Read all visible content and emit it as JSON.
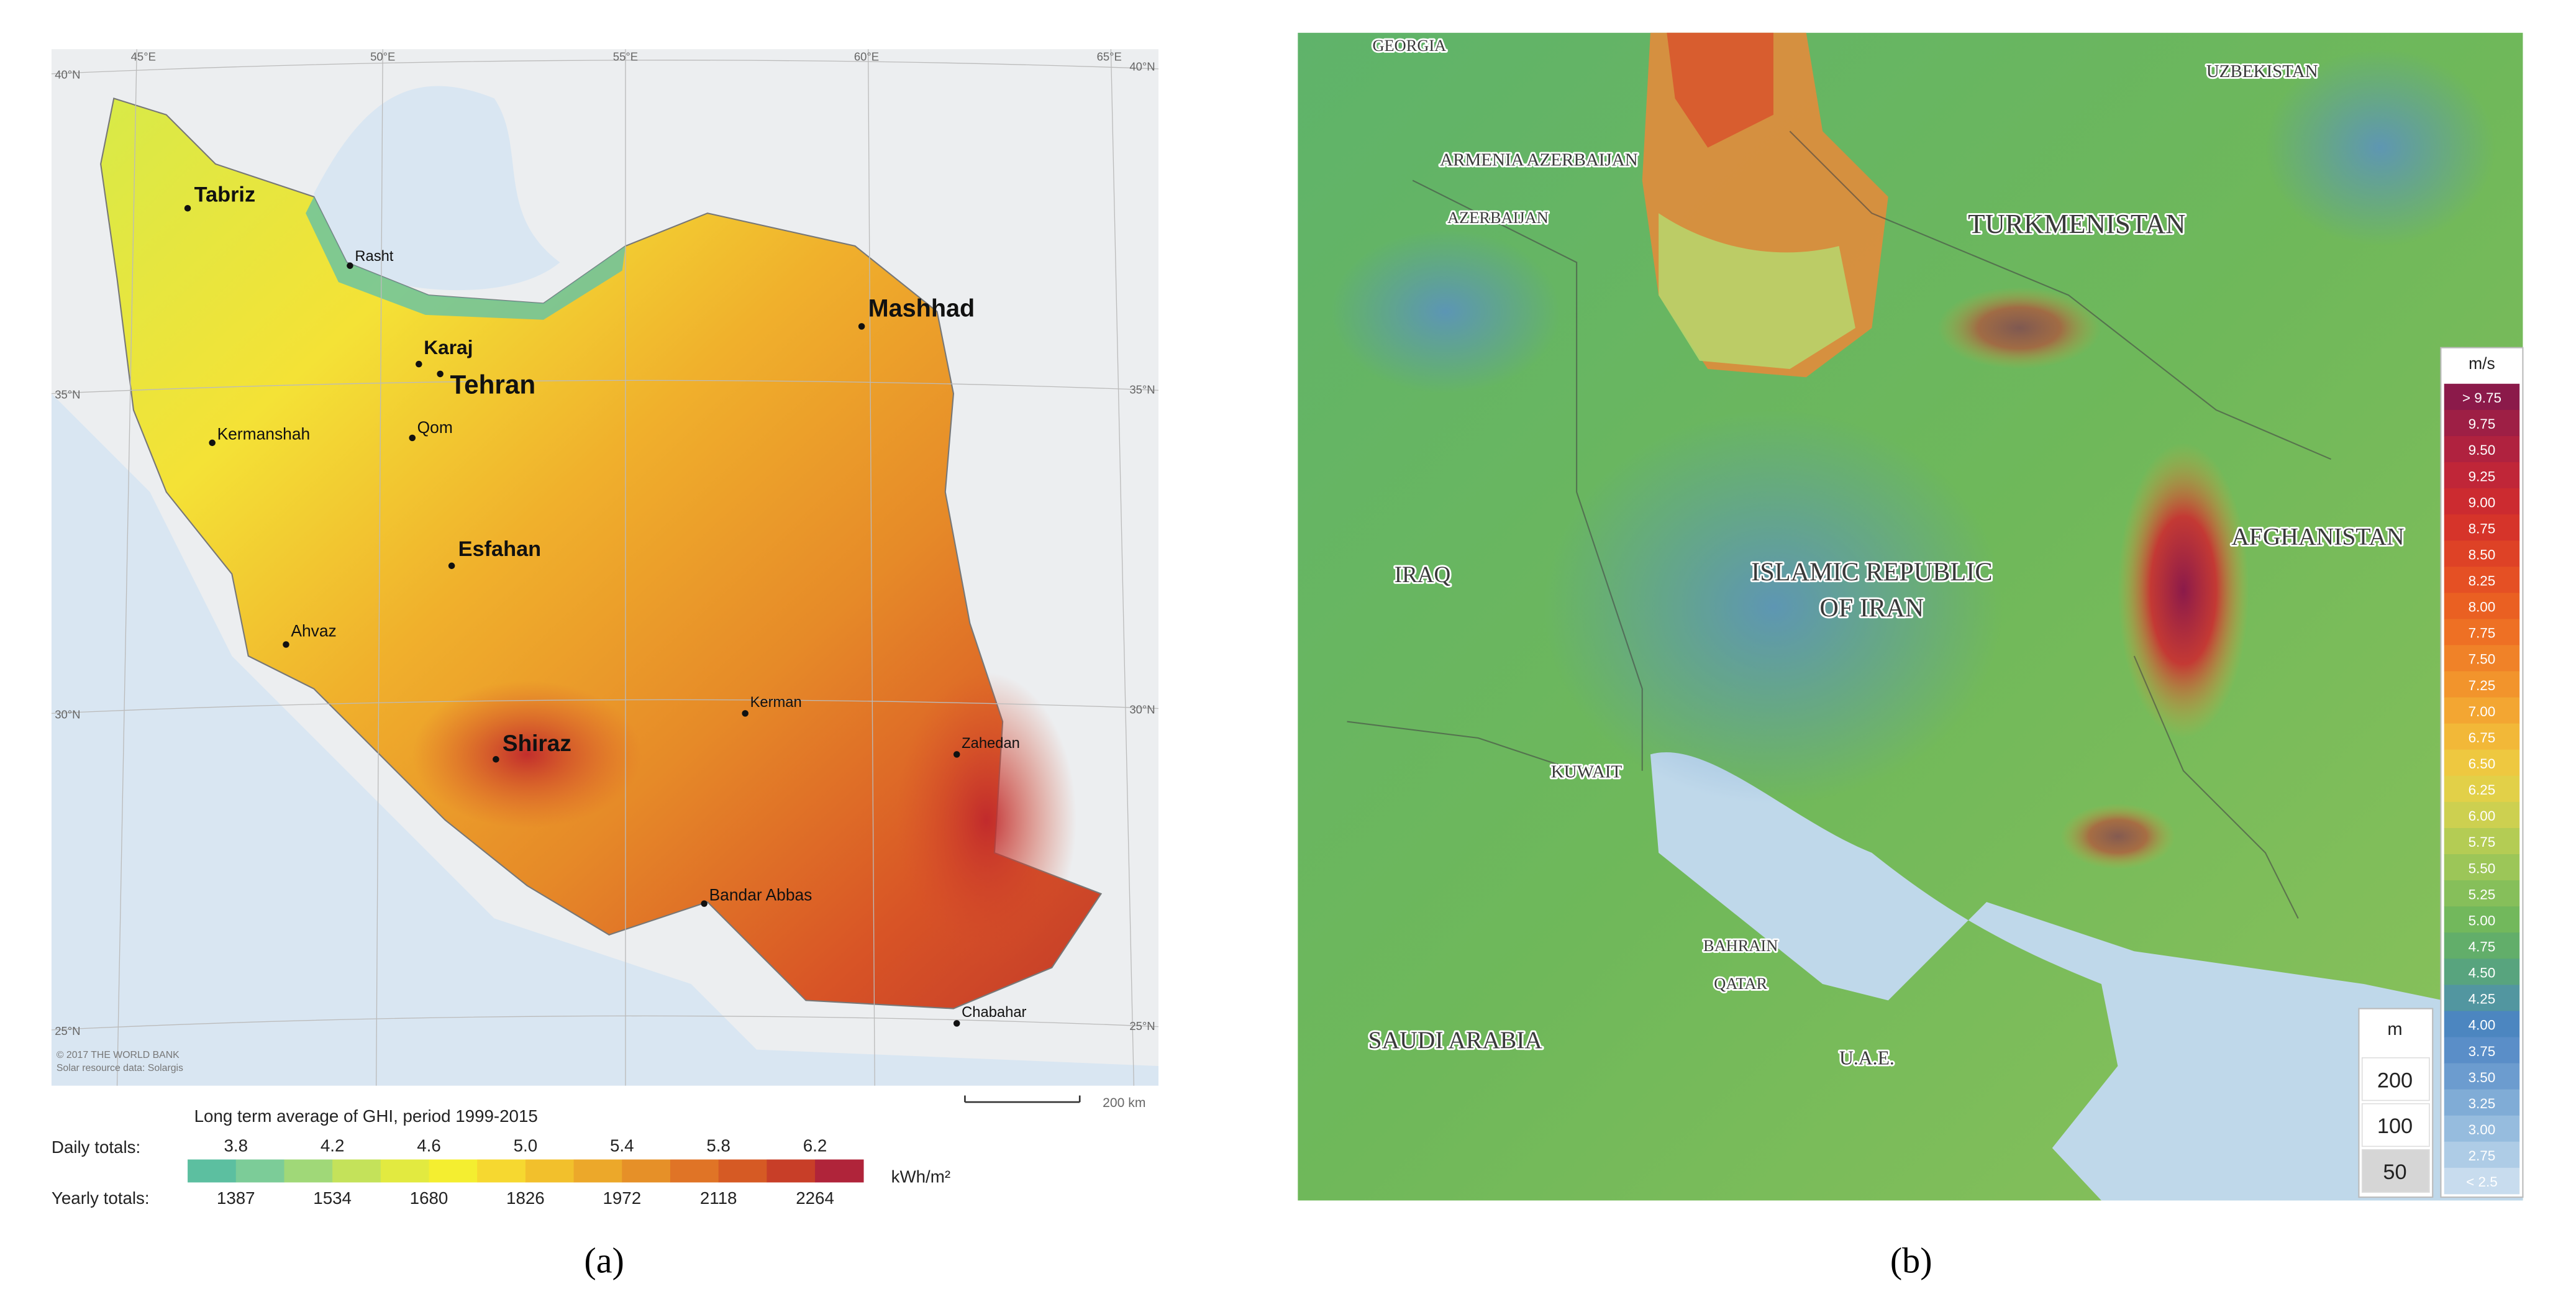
{
  "panel_a": {
    "caption": "(a)",
    "graticule": {
      "longitudes": [
        "45°E",
        "50°E",
        "55°E",
        "60°E",
        "65°E"
      ],
      "latitudes": [
        "40°N",
        "35°N",
        "30°N",
        "25°N"
      ]
    },
    "cities": [
      "Tabriz",
      "Rasht",
      "Mashhad",
      "Karaj",
      "Tehran",
      "Kermanshah",
      "Qom",
      "Esfahan",
      "Ahvaz",
      "Kerman",
      "Shiraz",
      "Zahedan",
      "Bandar Abbas",
      "Chabahar"
    ],
    "credits": [
      "© 2017 THE WORLD BANK",
      "Solar resource data: Solargis"
    ],
    "scale_label": "200 km",
    "legend": {
      "title": "Long term average of GHI, period 1999-2015",
      "daily_label": "Daily totals:",
      "daily": [
        "3.8",
        "4.2",
        "4.6",
        "5.0",
        "5.4",
        "5.8",
        "6.2"
      ],
      "yearly_label": "Yearly totals:",
      "yearly": [
        1387,
        1534,
        1680,
        1826,
        1972,
        2118,
        2264
      ],
      "unit": "kWh/m²",
      "colors": [
        "#5cbfa0",
        "#7ccc98",
        "#a0d878",
        "#c4e25a",
        "#e2ea40",
        "#f4ee30",
        "#f6d830",
        "#f2c02c",
        "#eca82a",
        "#e69028",
        "#e07426",
        "#d65a24",
        "#c83e28",
        "#b0243a"
      ]
    }
  },
  "panel_b": {
    "caption": "(b)",
    "countries": [
      "GEORGIA",
      "UZBEKISTAN",
      "ARMENIA AZERBAIJAN",
      "AZERBAIJAN",
      "TURKMENISTAN",
      "IRAQ",
      "ISLAMIC REPUBLIC",
      "OF IRAN",
      "AFGHANISTAN",
      "KUWAIT",
      "SAUDI ARABIA",
      "BAHRAIN",
      "QATAR",
      "U.A.E."
    ],
    "legend": {
      "unit": "m/s",
      "labels": [
        "> 9.75",
        "9.75",
        "9.50",
        "9.25",
        "9.00",
        "8.75",
        "8.50",
        "8.25",
        "8.00",
        "7.75",
        "7.50",
        "7.25",
        "7.00",
        "6.75",
        "6.50",
        "6.25",
        "6.00",
        "5.75",
        "5.50",
        "5.25",
        "5.00",
        "4.75",
        "4.50",
        "4.25",
        "4.00",
        "3.75",
        "3.50",
        "3.25",
        "3.00",
        "2.75",
        "< 2.5"
      ],
      "colors": [
        "#8b1a4a",
        "#9e1f45",
        "#b0223f",
        "#c02638",
        "#cc2b30",
        "#d6342a",
        "#de4226",
        "#e55024",
        "#ea6022",
        "#ee7024",
        "#f08228",
        "#f2942c",
        "#f3a632",
        "#f2b838",
        "#eec840",
        "#e2d048",
        "#cdd050",
        "#b4cc54",
        "#9cc658",
        "#86bf5a",
        "#72b85c",
        "#62ae6a",
        "#58a47e",
        "#5296a0",
        "#4c86c0",
        "#5a8ec8",
        "#6c9ccf",
        "#80acd6",
        "#96bcde",
        "#aecce6",
        "#c8dcee"
      ]
    },
    "height": {
      "unit": "m",
      "options": [
        "200",
        "100",
        "50"
      ]
    }
  }
}
